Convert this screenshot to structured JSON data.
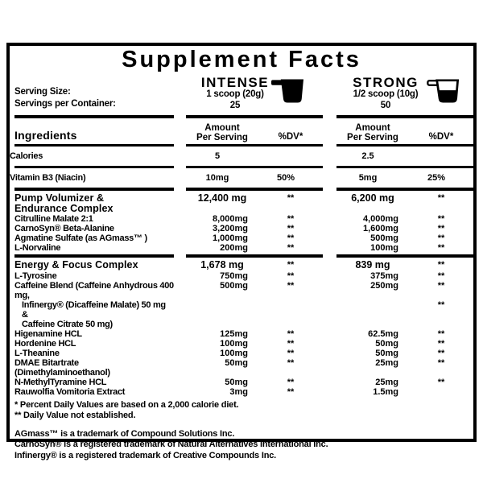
{
  "title": "Supplement Facts",
  "serving": {
    "size_label": "Serving Size:",
    "container_label": "Servings per Container:",
    "intense": {
      "name": "INTENSE",
      "scoop": "1 scoop (20g)",
      "servings": "25",
      "icon": "full-scoop-icon"
    },
    "strong": {
      "name": "STRONG",
      "scoop": "1/2 scoop (10g)",
      "servings": "50",
      "icon": "half-scoop-icon"
    }
  },
  "table": {
    "ingredients_label": "Ingredients",
    "amount_label_line1": "Amount",
    "amount_label_line2": "Per Serving",
    "dv_label": "%DV*",
    "rows": [
      {
        "kind": "item",
        "style": "plain",
        "name": "Calories",
        "a1": "5",
        "d1": "",
        "a2": "2.5",
        "d2": ""
      },
      {
        "kind": "sep",
        "weight": "thin"
      },
      {
        "kind": "item",
        "style": "plain",
        "name": "Vitamin B3 (Niacin)",
        "a1": "10mg",
        "d1": "50%",
        "a2": "5mg",
        "d2": "25%"
      },
      {
        "kind": "sep",
        "weight": "thick"
      },
      {
        "kind": "item",
        "style": "section",
        "name_lines": [
          "Pump Volumizer &",
          "Endurance Complex"
        ],
        "a1": "12,400 mg",
        "d1": "**",
        "a2": "6,200 mg",
        "d2": "**"
      },
      {
        "kind": "item",
        "style": "sub",
        "name": "Citrulline Malate 2:1",
        "a1": "8,000mg",
        "d1": "**",
        "a2": "4,000mg",
        "d2": "**"
      },
      {
        "kind": "item",
        "style": "sub",
        "name": "CarnoSyn® Beta-Alanine",
        "a1": "3,200mg",
        "d1": "**",
        "a2": "1,600mg",
        "d2": "**"
      },
      {
        "kind": "item",
        "style": "sub",
        "name": "Agmatine Sulfate (as AGmass™ )",
        "a1": "1,000mg",
        "d1": "**",
        "a2": "500mg",
        "d2": "**"
      },
      {
        "kind": "item",
        "style": "sub",
        "name": "L-Norvaline",
        "a1": "200mg",
        "d1": "**",
        "a2": "100mg",
        "d2": "**"
      },
      {
        "kind": "sep",
        "weight": "thick"
      },
      {
        "kind": "item",
        "style": "section",
        "name_lines": [
          "Energy & Focus Complex"
        ],
        "a1": "1,678 mg",
        "d1": "**",
        "a2": "839 mg",
        "d2": "**"
      },
      {
        "kind": "item",
        "style": "sub",
        "name": "L-Tyrosine",
        "a1": "750mg",
        "d1": "**",
        "a2": "375mg",
        "d2": "**"
      },
      {
        "kind": "item",
        "style": "sub",
        "name_lines": [
          "Caffeine Blend (Caffeine Anhydrous 400 mg,",
          "Infinergy® (Dicaffeine Malate) 50 mg &",
          "Caffeine Citrate 50 mg)"
        ],
        "indent_from": 1,
        "a1": "500mg",
        "d1": "**",
        "a2": "250mg",
        "d2_lines": [
          "**",
          "",
          "**"
        ]
      },
      {
        "kind": "item",
        "style": "sub",
        "name": "Higenamine HCL",
        "a1": "125mg",
        "d1": "**",
        "a2": "62.5mg",
        "d2": "**"
      },
      {
        "kind": "item",
        "style": "sub",
        "name": "Hordenine HCL",
        "a1": "100mg",
        "d1": "**",
        "a2": "50mg",
        "d2": "**"
      },
      {
        "kind": "item",
        "style": "sub",
        "name": "L-Theanine",
        "a1": "100mg",
        "d1": "**",
        "a2": "50mg",
        "d2": "**"
      },
      {
        "kind": "item",
        "style": "sub",
        "name": "DMAE Bitartrate (Dimethylaminoethanol)",
        "a1": "50mg",
        "d1": "**",
        "a2": "25mg",
        "d2": "**"
      },
      {
        "kind": "item",
        "style": "sub",
        "name": "N-MethylTyramine HCL",
        "a1": "50mg",
        "d1": "**",
        "a2": "25mg",
        "d2": "**"
      },
      {
        "kind": "item",
        "style": "sub",
        "name": "Rauwolfia Vomitoria Extract",
        "a1": "3mg",
        "d1": "**",
        "a2": "1.5mg",
        "d2": ""
      }
    ]
  },
  "footnotes": [
    "* Percent Daily Values are based on a 2,000 calorie diet.",
    "** Daily Value not established."
  ],
  "trademarks": [
    "AGmass™ is a trademark of Compound Solutions Inc.",
    "CarnoSyn® is a registered trademark of Natural Alternatives International Inc.",
    "Infinergy® is a registered trademark of Creative Compounds Inc."
  ],
  "colors": {
    "ink": "#000000",
    "paper": "#ffffff"
  }
}
